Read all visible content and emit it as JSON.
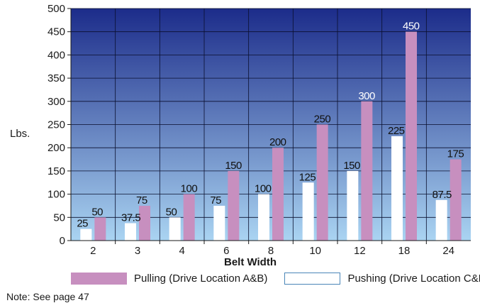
{
  "chart_data": {
    "type": "bar",
    "categories": [
      "2",
      "3",
      "4",
      "6",
      "8",
      "10",
      "12",
      "18",
      "24"
    ],
    "series": [
      {
        "name": "Pushing (Drive Location C&D)",
        "values": [
          25,
          37.5,
          50,
          75,
          100,
          125,
          150,
          225,
          87.5
        ],
        "color": "#ffffff"
      },
      {
        "name": "Pulling (Drive Location A&B)",
        "values": [
          50,
          75,
          100,
          150,
          200,
          250,
          300,
          450,
          175
        ],
        "color": "#c78fbf"
      }
    ],
    "data_labels": {
      "pushing": [
        "25",
        "37.5",
        "50",
        "75",
        "100",
        "125",
        "150",
        "225",
        "87.5"
      ],
      "pulling": [
        "50",
        "75",
        "100",
        "150",
        "200",
        "250",
        "300",
        "450",
        "175"
      ]
    },
    "xlabel": "Belt Width",
    "ylabel": "Lbs.",
    "ylim": [
      0,
      500
    ],
    "yticks": [
      "0",
      "50",
      "100",
      "150",
      "200",
      "250",
      "300",
      "350",
      "400",
      "450",
      "500"
    ],
    "grid": true,
    "background_gradient": [
      "#1c2c8a",
      "#aad4f2"
    ]
  },
  "legend": {
    "pulling_label": "Pulling (Drive Location A&B)",
    "pushing_label": "Pushing (Drive Location C&D)"
  },
  "note": "Note: See page 47"
}
